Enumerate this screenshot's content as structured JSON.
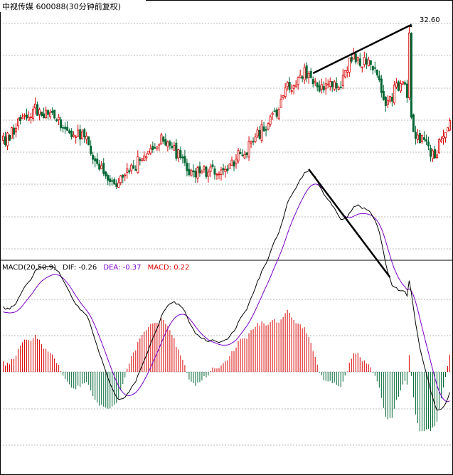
{
  "chart_data": [
    {
      "type": "candlestick",
      "title": "中视传媒 600088(30分钟前复权)",
      "peak_label": "32.60",
      "peak_value": 32.6,
      "colors": {
        "up": "#d80000",
        "down": "#006633",
        "grid": "#b8b8b8",
        "trendline": "#000000"
      },
      "price_path": [
        24.5,
        25.8,
        26.8,
        26.3,
        25.4,
        24.8,
        22.5,
        21.6,
        22.8,
        23.6,
        24.6,
        23.7,
        22.3,
        22.5,
        22.9,
        23.6,
        25.2,
        26.3,
        28.4,
        29.3,
        28.1,
        28.5,
        30.3,
        30.0,
        27.4,
        28.6,
        24.8,
        23.8,
        26.0
      ],
      "series_end": 26.0,
      "trendline": {
        "from": 29.3,
        "to": 32.6,
        "description": "rising price highs"
      }
    },
    {
      "type": "macd",
      "header": {
        "label": "MACD(20,50,9)",
        "dif_label": "DIF: -0.26",
        "dea_label": "DEA: -0.37",
        "macd_label": "MACD: 0.22"
      },
      "params": [
        20,
        50,
        9
      ],
      "dif": -0.26,
      "dea": -0.37,
      "macd": 0.22,
      "colors": {
        "dif": "#000000",
        "dea": "#7a00c8",
        "hist_up": "#d80000",
        "hist_down": "#006633",
        "trendline": "#000000"
      },
      "trendline": {
        "description": "falling DIF highs (divergence)"
      }
    }
  ]
}
